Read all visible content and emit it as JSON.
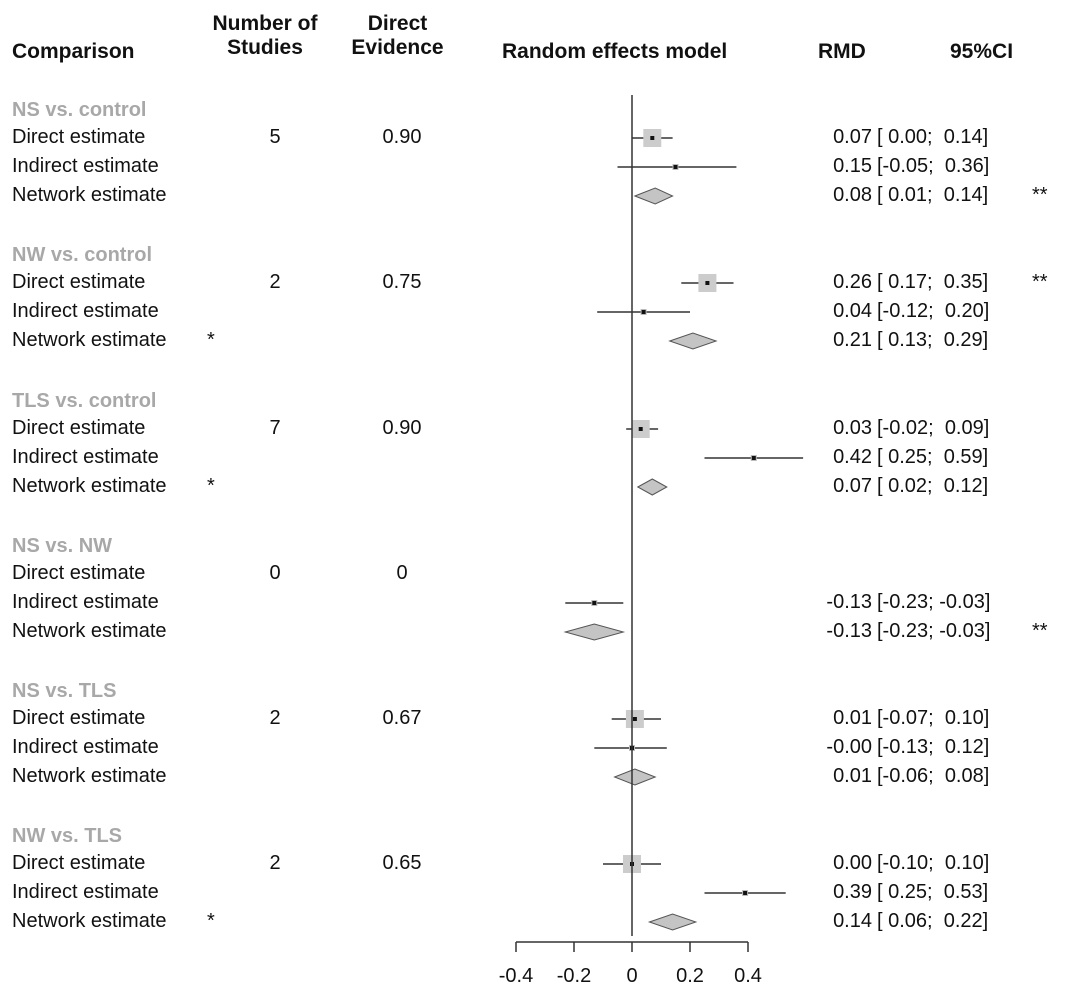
{
  "headers": {
    "comparison": "Comparison",
    "studies_line1": "Number of",
    "studies_line2": "Studies",
    "direct_line1": "Direct",
    "direct_line2": "Evidence",
    "model": "Random effects model",
    "rmd": "RMD",
    "ci": "95%CI"
  },
  "chart_data": {
    "type": "forest",
    "xlim": [
      -0.4,
      0.4
    ],
    "ticks": [
      "-0.4",
      "-0.2",
      "0",
      "0.2",
      "0.4"
    ],
    "tick_values": [
      -0.4,
      -0.2,
      0,
      0.2,
      0.4
    ],
    "groups": [
      {
        "name": "NS vs. control",
        "studies": "5",
        "direct_evidence": "0.90",
        "rows": [
          {
            "label": "Direct estimate",
            "star": "",
            "kind": "direct",
            "est": 0.07,
            "lo": 0.0,
            "hi": 0.14,
            "rmd": "0.07",
            "ci": "[ 0.00;  0.14]",
            "sig": ""
          },
          {
            "label": "Indirect estimate",
            "star": "",
            "kind": "indirect",
            "est": 0.15,
            "lo": -0.05,
            "hi": 0.36,
            "rmd": "0.15",
            "ci": "[-0.05;  0.36]",
            "sig": ""
          },
          {
            "label": "Network estimate",
            "star": "",
            "kind": "network",
            "est": 0.08,
            "lo": 0.01,
            "hi": 0.14,
            "rmd": "0.08",
            "ci": "[ 0.01;  0.14]",
            "sig": "**"
          }
        ]
      },
      {
        "name": "NW vs. control",
        "studies": "2",
        "direct_evidence": "0.75",
        "rows": [
          {
            "label": "Direct estimate",
            "star": "",
            "kind": "direct",
            "est": 0.26,
            "lo": 0.17,
            "hi": 0.35,
            "rmd": "0.26",
            "ci": "[ 0.17;  0.35]",
            "sig": "**"
          },
          {
            "label": "Indirect estimate",
            "star": "",
            "kind": "indirect",
            "est": 0.04,
            "lo": -0.12,
            "hi": 0.2,
            "rmd": "0.04",
            "ci": "[-0.12;  0.20]",
            "sig": ""
          },
          {
            "label": "Network estimate",
            "star": "*",
            "kind": "network",
            "est": 0.21,
            "lo": 0.13,
            "hi": 0.29,
            "rmd": "0.21",
            "ci": "[ 0.13;  0.29]",
            "sig": ""
          }
        ]
      },
      {
        "name": "TLS vs. control",
        "studies": "7",
        "direct_evidence": "0.90",
        "rows": [
          {
            "label": "Direct estimate",
            "star": "",
            "kind": "direct",
            "est": 0.03,
            "lo": -0.02,
            "hi": 0.09,
            "rmd": "0.03",
            "ci": "[-0.02;  0.09]",
            "sig": ""
          },
          {
            "label": "Indirect estimate",
            "star": "",
            "kind": "indirect",
            "est": 0.42,
            "lo": 0.25,
            "hi": 0.59,
            "rmd": "0.42",
            "ci": "[ 0.25;  0.59]",
            "sig": ""
          },
          {
            "label": "Network estimate",
            "star": "*",
            "kind": "network",
            "est": 0.07,
            "lo": 0.02,
            "hi": 0.12,
            "rmd": "0.07",
            "ci": "[ 0.02;  0.12]",
            "sig": ""
          }
        ]
      },
      {
        "name": "NS vs. NW",
        "studies": "0",
        "direct_evidence": "0",
        "rows": [
          {
            "label": "Direct estimate",
            "star": "",
            "kind": "none",
            "est": null,
            "lo": null,
            "hi": null,
            "rmd": "",
            "ci": "",
            "sig": ""
          },
          {
            "label": "Indirect estimate",
            "star": "",
            "kind": "indirect",
            "est": -0.13,
            "lo": -0.23,
            "hi": -0.03,
            "rmd": "-0.13",
            "ci": "[-0.23; -0.03]",
            "sig": ""
          },
          {
            "label": "Network estimate",
            "star": "",
            "kind": "network",
            "est": -0.13,
            "lo": -0.23,
            "hi": -0.03,
            "rmd": "-0.13",
            "ci": "[-0.23; -0.03]",
            "sig": "**"
          }
        ]
      },
      {
        "name": "NS vs. TLS",
        "studies": "2",
        "direct_evidence": "0.67",
        "rows": [
          {
            "label": "Direct estimate",
            "star": "",
            "kind": "direct",
            "est": 0.01,
            "lo": -0.07,
            "hi": 0.1,
            "rmd": "0.01",
            "ci": "[-0.07;  0.10]",
            "sig": ""
          },
          {
            "label": "Indirect estimate",
            "star": "",
            "kind": "indirect",
            "est": -0.0,
            "lo": -0.13,
            "hi": 0.12,
            "rmd": "-0.00",
            "ci": "[-0.13;  0.12]",
            "sig": ""
          },
          {
            "label": "Network estimate",
            "star": "",
            "kind": "network",
            "est": 0.01,
            "lo": -0.06,
            "hi": 0.08,
            "rmd": "0.01",
            "ci": "[-0.06;  0.08]",
            "sig": ""
          }
        ]
      },
      {
        "name": "NW vs. TLS",
        "studies": "2",
        "direct_evidence": "0.65",
        "rows": [
          {
            "label": "Direct estimate",
            "star": "",
            "kind": "direct",
            "est": 0.0,
            "lo": -0.1,
            "hi": 0.1,
            "rmd": "0.00",
            "ci": "[-0.10;  0.10]",
            "sig": ""
          },
          {
            "label": "Indirect estimate",
            "star": "",
            "kind": "indirect",
            "est": 0.39,
            "lo": 0.25,
            "hi": 0.53,
            "rmd": "0.39",
            "ci": "[ 0.25;  0.53]",
            "sig": ""
          },
          {
            "label": "Network estimate",
            "star": "*",
            "kind": "network",
            "est": 0.14,
            "lo": 0.06,
            "hi": 0.22,
            "rmd": "0.14",
            "ci": "[ 0.06;  0.22]",
            "sig": ""
          }
        ]
      }
    ]
  }
}
